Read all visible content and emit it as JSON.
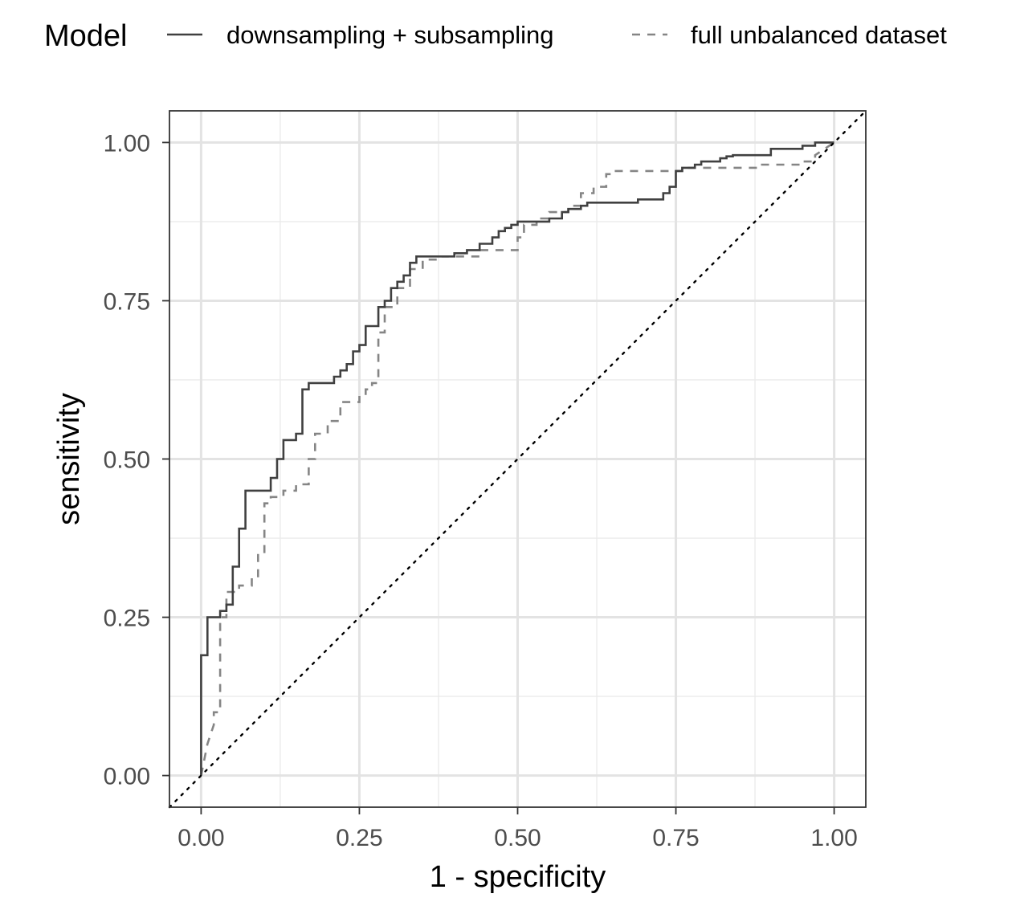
{
  "chart_data": {
    "type": "line",
    "title": "",
    "xlabel": "1 - specificity",
    "ylabel": "sensitivity",
    "xlim": [
      -0.05,
      1.05
    ],
    "ylim": [
      -0.05,
      1.05
    ],
    "x_ticks": [
      "0.00",
      "0.25",
      "0.50",
      "0.75",
      "1.00"
    ],
    "y_ticks": [
      "0.00",
      "0.25",
      "0.50",
      "0.75",
      "1.00"
    ],
    "grid": true,
    "legend": {
      "title": "Model",
      "position": "top"
    },
    "reference_line": {
      "style": "dotted",
      "from": [
        -0.05,
        -0.05
      ],
      "to": [
        1.05,
        1.05
      ]
    },
    "series": [
      {
        "name": "downsampling + subsampling",
        "color": "#404040",
        "linestyle": "solid",
        "x": [
          0,
          0,
          0.01,
          0.01,
          0.03,
          0.03,
          0.04,
          0.04,
          0.05,
          0.05,
          0.06,
          0.06,
          0.07,
          0.07,
          0.11,
          0.11,
          0.12,
          0.12,
          0.13,
          0.13,
          0.15,
          0.15,
          0.16,
          0.16,
          0.17,
          0.17,
          0.21,
          0.21,
          0.22,
          0.22,
          0.23,
          0.23,
          0.24,
          0.24,
          0.25,
          0.25,
          0.26,
          0.26,
          0.27,
          0.27,
          0.28,
          0.28,
          0.29,
          0.29,
          0.3,
          0.3,
          0.31,
          0.31,
          0.32,
          0.32,
          0.33,
          0.33,
          0.34,
          0.34,
          0.4,
          0.4,
          0.42,
          0.42,
          0.44,
          0.44,
          0.46,
          0.46,
          0.47,
          0.47,
          0.48,
          0.48,
          0.49,
          0.49,
          0.5,
          0.5,
          0.55,
          0.55,
          0.57,
          0.57,
          0.58,
          0.58,
          0.6,
          0.6,
          0.61,
          0.61,
          0.69,
          0.69,
          0.73,
          0.73,
          0.74,
          0.74,
          0.75,
          0.75,
          0.76,
          0.76,
          0.78,
          0.78,
          0.79,
          0.79,
          0.82,
          0.82,
          0.83,
          0.83,
          0.84,
          0.84,
          0.9,
          0.9,
          0.95,
          0.95,
          0.97,
          0.97,
          1
        ],
        "y": [
          0,
          0.19,
          0.19,
          0.25,
          0.25,
          0.26,
          0.26,
          0.27,
          0.27,
          0.33,
          0.33,
          0.39,
          0.39,
          0.45,
          0.45,
          0.47,
          0.47,
          0.5,
          0.5,
          0.53,
          0.53,
          0.54,
          0.54,
          0.61,
          0.61,
          0.62,
          0.62,
          0.63,
          0.63,
          0.64,
          0.64,
          0.65,
          0.65,
          0.67,
          0.67,
          0.68,
          0.68,
          0.71,
          0.71,
          0.71,
          0.71,
          0.74,
          0.74,
          0.75,
          0.75,
          0.77,
          0.77,
          0.78,
          0.78,
          0.79,
          0.79,
          0.81,
          0.81,
          0.82,
          0.82,
          0.825,
          0.825,
          0.83,
          0.83,
          0.84,
          0.84,
          0.85,
          0.85,
          0.86,
          0.86,
          0.865,
          0.865,
          0.87,
          0.87,
          0.875,
          0.875,
          0.88,
          0.88,
          0.89,
          0.89,
          0.895,
          0.895,
          0.9,
          0.9,
          0.905,
          0.905,
          0.91,
          0.91,
          0.92,
          0.92,
          0.93,
          0.93,
          0.955,
          0.955,
          0.96,
          0.96,
          0.965,
          0.965,
          0.97,
          0.97,
          0.975,
          0.975,
          0.978,
          0.978,
          0.98,
          0.98,
          0.99,
          0.99,
          0.995,
          0.995,
          1,
          1
        ]
      },
      {
        "name": "full unbalanced dataset",
        "color": "#858585",
        "linestyle": "dashed",
        "x": [
          0,
          0.01,
          0.02,
          0.02,
          0.03,
          0.03,
          0.04,
          0.04,
          0.06,
          0.06,
          0.08,
          0.08,
          0.09,
          0.09,
          0.1,
          0.1,
          0.11,
          0.11,
          0.13,
          0.13,
          0.15,
          0.15,
          0.17,
          0.17,
          0.18,
          0.18,
          0.2,
          0.2,
          0.22,
          0.22,
          0.25,
          0.25,
          0.26,
          0.26,
          0.27,
          0.27,
          0.28,
          0.28,
          0.29,
          0.29,
          0.31,
          0.31,
          0.33,
          0.33,
          0.35,
          0.35,
          0.38,
          0.38,
          0.44,
          0.44,
          0.5,
          0.5,
          0.51,
          0.51,
          0.53,
          0.53,
          0.55,
          0.55,
          0.58,
          0.58,
          0.6,
          0.6,
          0.62,
          0.62,
          0.64,
          0.64,
          0.65,
          0.65,
          0.76,
          0.76,
          0.88,
          0.88,
          0.95,
          0.95,
          0.97,
          0.97,
          1
        ],
        "y": [
          0,
          0.05,
          0.08,
          0.1,
          0.1,
          0.25,
          0.25,
          0.29,
          0.29,
          0.3,
          0.3,
          0.31,
          0.31,
          0.35,
          0.35,
          0.43,
          0.43,
          0.44,
          0.44,
          0.45,
          0.45,
          0.46,
          0.46,
          0.5,
          0.5,
          0.54,
          0.54,
          0.56,
          0.56,
          0.59,
          0.59,
          0.6,
          0.6,
          0.61,
          0.61,
          0.62,
          0.62,
          0.7,
          0.7,
          0.74,
          0.74,
          0.77,
          0.77,
          0.8,
          0.8,
          0.815,
          0.815,
          0.82,
          0.82,
          0.83,
          0.83,
          0.85,
          0.85,
          0.87,
          0.87,
          0.88,
          0.88,
          0.89,
          0.89,
          0.9,
          0.9,
          0.92,
          0.92,
          0.93,
          0.93,
          0.95,
          0.95,
          0.955,
          0.955,
          0.96,
          0.96,
          0.965,
          0.965,
          0.97,
          0.97,
          0.98,
          1
        ]
      }
    ]
  }
}
